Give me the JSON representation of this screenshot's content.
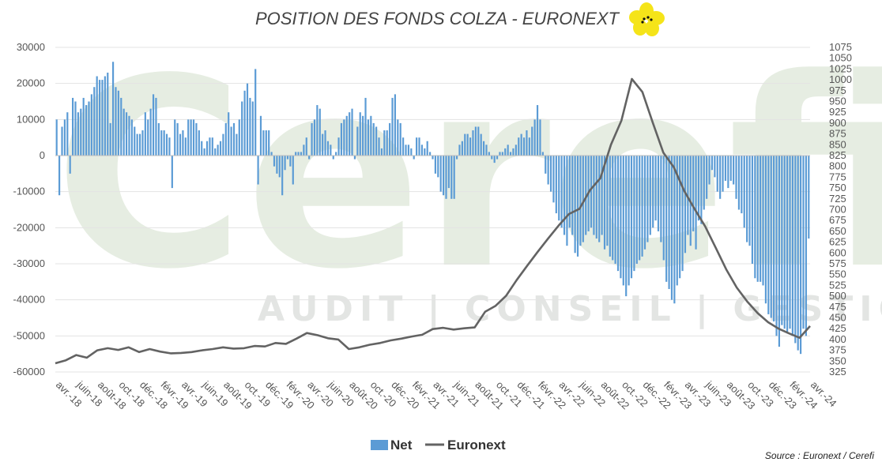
{
  "chart_data": {
    "type": "bar+line",
    "title": "POSITION DES FONDS COLZA - EURONEXT",
    "source": "Source : Euronext / Cerefi",
    "watermark": {
      "word": "Cerefi",
      "tagline": "AUDIT | CONSEIL | GESTION"
    },
    "colors": {
      "bar": "#5b9bd5",
      "line": "#636363",
      "flower": "#f5e419"
    },
    "y_left": {
      "min": -60000,
      "max": 30000,
      "step": 10000
    },
    "y_right": {
      "min": 325,
      "max": 1075,
      "step": 25
    },
    "x_labels": [
      "avr.-18",
      "juin-18",
      "août-18",
      "oct.-18",
      "déc.-18",
      "févr.-19",
      "avr.-19",
      "juin-19",
      "août-19",
      "oct.-19",
      "déc.-19",
      "févr.-20",
      "avr.-20",
      "juin-20",
      "août-20",
      "oct.-20",
      "déc.-20",
      "févr.-21",
      "avr.-21",
      "juin-21",
      "août-21",
      "oct.-21",
      "déc.-21",
      "févr.-22",
      "avr.-22",
      "juin-22",
      "août-22",
      "oct.-22",
      "déc.-22",
      "févr.-23",
      "avr.-23",
      "juin-23",
      "août-23",
      "oct.-23",
      "déc.-23",
      "févr.-24",
      "avr.-24"
    ],
    "legend": {
      "position": "bottom",
      "items": [
        {
          "name": "Net",
          "kind": "bar"
        },
        {
          "name": "Euronext",
          "kind": "line"
        }
      ]
    },
    "grid": true,
    "series": [
      {
        "name": "Net",
        "kind": "bar",
        "axis": "left",
        "unit": "monthly",
        "values": [
          10000,
          -11000,
          8000,
          10000,
          12000,
          -5000,
          16000,
          15000,
          12000,
          13000,
          16000,
          14000,
          15000,
          17000,
          19000,
          22000,
          21000,
          21000,
          22000,
          23000,
          9000,
          26000,
          19000,
          18000,
          16000,
          13000,
          12000,
          11000,
          10000,
          8000,
          6000,
          6000,
          7000,
          12000,
          10000,
          13000,
          17000,
          16000,
          9000,
          7000,
          7000,
          6000,
          5000,
          -9000,
          10000,
          9000,
          6000,
          7000,
          5000,
          10000,
          10000,
          10000,
          9000,
          7000,
          4000,
          2000,
          4000,
          5000,
          5000,
          2000,
          3000,
          4000,
          6000,
          9000,
          12000,
          8000,
          9000,
          6000,
          10000,
          15000,
          18000,
          20000,
          16000,
          15000,
          24000,
          -8000,
          11000,
          7000,
          7000,
          7000,
          1000,
          -3000,
          -5000,
          -6000,
          -11000,
          -4000,
          -1000,
          -3000,
          -8000,
          1000,
          1000,
          1000,
          3000,
          5000,
          -1000,
          9000,
          10000,
          14000,
          13000,
          6000,
          7000,
          4000,
          3000,
          -1000,
          1000,
          5000,
          9000,
          10000,
          11000,
          12000,
          13000,
          -1000,
          8000,
          12000,
          11000,
          16000,
          10000,
          11000,
          9000,
          8000,
          5000,
          2000,
          7000,
          7000,
          9000,
          16000,
          17000,
          10000,
          9000,
          5000,
          3000,
          3000,
          2000,
          -1000,
          5000,
          5000,
          3000,
          2000,
          4000,
          1000,
          -1000,
          -5000,
          -6000,
          -10000,
          -11000,
          -12000,
          -9000,
          -12000,
          -12000,
          -1000,
          3000,
          4000,
          6000,
          6000,
          5000,
          7000,
          8000,
          8000,
          6000,
          4000,
          3000,
          1000,
          -1000,
          -2000,
          -1000,
          1000,
          1000,
          2000,
          3000,
          1000,
          2000,
          3000,
          5000,
          6000,
          5000,
          7000,
          5000,
          8000,
          10000,
          14000,
          10000,
          1000,
          -5000,
          -8000,
          -10000,
          -13000,
          -16000,
          -18000,
          -20000,
          -22000,
          -25000,
          -20000,
          -22000,
          -27000,
          -28000,
          -25000,
          -24000,
          -22000,
          -21000,
          -20000,
          -22000,
          -23000,
          -24000,
          -22000,
          -26000,
          -25000,
          -28000,
          -29000,
          -30000,
          -32000,
          -34000,
          -36000,
          -39000,
          -36000,
          -34000,
          -32000,
          -30000,
          -29000,
          -28000,
          -26000,
          -24000,
          -22000,
          -20000,
          -18000,
          -21000,
          -24000,
          -29000,
          -35000,
          -37000,
          -40000,
          -41000,
          -36000,
          -34000,
          -32000,
          -27000,
          -22000,
          -25000,
          -21000,
          -26000,
          -18000,
          -19000,
          -15000,
          -12000,
          -8000,
          -4000,
          -6000,
          -10000,
          -12000,
          -10000,
          -7000,
          -9000,
          -7000,
          -8000,
          -12000,
          -15000,
          -16000,
          -20000,
          -24000,
          -25000,
          -30000,
          -34000,
          -35000,
          -35000,
          -36000,
          -41000,
          -44000,
          -45000,
          -46000,
          -50000,
          -53000,
          -47000,
          -48000,
          -49000,
          -48000,
          -50000,
          -52000,
          -54000,
          -55000,
          -48000,
          -50000,
          -23000
        ]
      },
      {
        "name": "Euronext",
        "kind": "line",
        "axis": "right",
        "unit": "monthly",
        "x": [
          0,
          1,
          2,
          3,
          4,
          5,
          6,
          7,
          8,
          9,
          10,
          11,
          12,
          13,
          14,
          15,
          16,
          17,
          18,
          19,
          20,
          21,
          22,
          23,
          24,
          25,
          26,
          27,
          28,
          29,
          30,
          31,
          32,
          33,
          34,
          35,
          36,
          37,
          38,
          39,
          40,
          41,
          42,
          43,
          44,
          45,
          46,
          47,
          48,
          49,
          50,
          51,
          52,
          53,
          54,
          55,
          56,
          57,
          58,
          59,
          60,
          61,
          62,
          63,
          64,
          65,
          66,
          67,
          68,
          69,
          70,
          71,
          72
        ],
        "values": [
          345,
          352,
          364,
          358,
          375,
          380,
          376,
          382,
          371,
          378,
          372,
          368,
          369,
          371,
          375,
          378,
          382,
          379,
          380,
          385,
          384,
          392,
          390,
          402,
          415,
          410,
          403,
          400,
          378,
          382,
          388,
          392,
          398,
          402,
          407,
          411,
          424,
          427,
          423,
          426,
          428,
          464,
          478,
          501,
          537,
          570,
          602,
          633,
          663,
          690,
          702,
          745,
          773,
          850,
          906,
          1002,
          972,
          901,
          832,
          798,
          743,
          701,
          661,
          612,
          562,
          520,
          488,
          461,
          440,
          425,
          414,
          404,
          431
        ]
      }
    ]
  }
}
